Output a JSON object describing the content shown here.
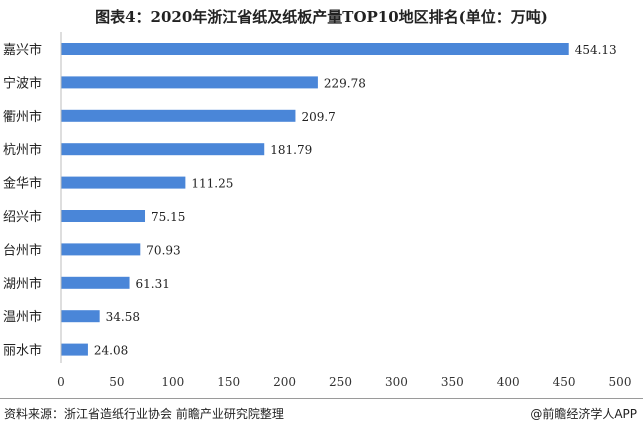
{
  "chart_data": {
    "type": "bar",
    "orientation": "horizontal",
    "title": "图表4：2020年浙江省纸及纸板产量TOP10地区排名(单位：万吨)",
    "categories": [
      "嘉兴市",
      "宁波市",
      "衢州市",
      "杭州市",
      "金华市",
      "绍兴市",
      "台州市",
      "湖州市",
      "温州市",
      "丽水市"
    ],
    "values": [
      454.13,
      229.78,
      209.7,
      181.79,
      111.25,
      75.15,
      70.93,
      61.31,
      34.58,
      24.08
    ],
    "value_labels": [
      "454.13",
      "229.78",
      "209.7",
      "181.79",
      "111.25",
      "75.15",
      "70.93",
      "61.31",
      "34.58",
      "24.08"
    ],
    "xlim": [
      0,
      500
    ],
    "xticks": [
      0,
      50,
      100,
      150,
      200,
      250,
      300,
      350,
      400,
      450,
      500
    ],
    "xtick_labels": [
      "0",
      "50",
      "100",
      "150",
      "200",
      "250",
      "300",
      "350",
      "400",
      "450",
      "500"
    ],
    "grid": false,
    "legend": "none",
    "bar_color": "#4a86d8"
  },
  "footer": {
    "source": "资料来源：浙江省造纸行业协会 前瞻产业研究院整理",
    "brand": "@前瞻经济学人APP"
  }
}
